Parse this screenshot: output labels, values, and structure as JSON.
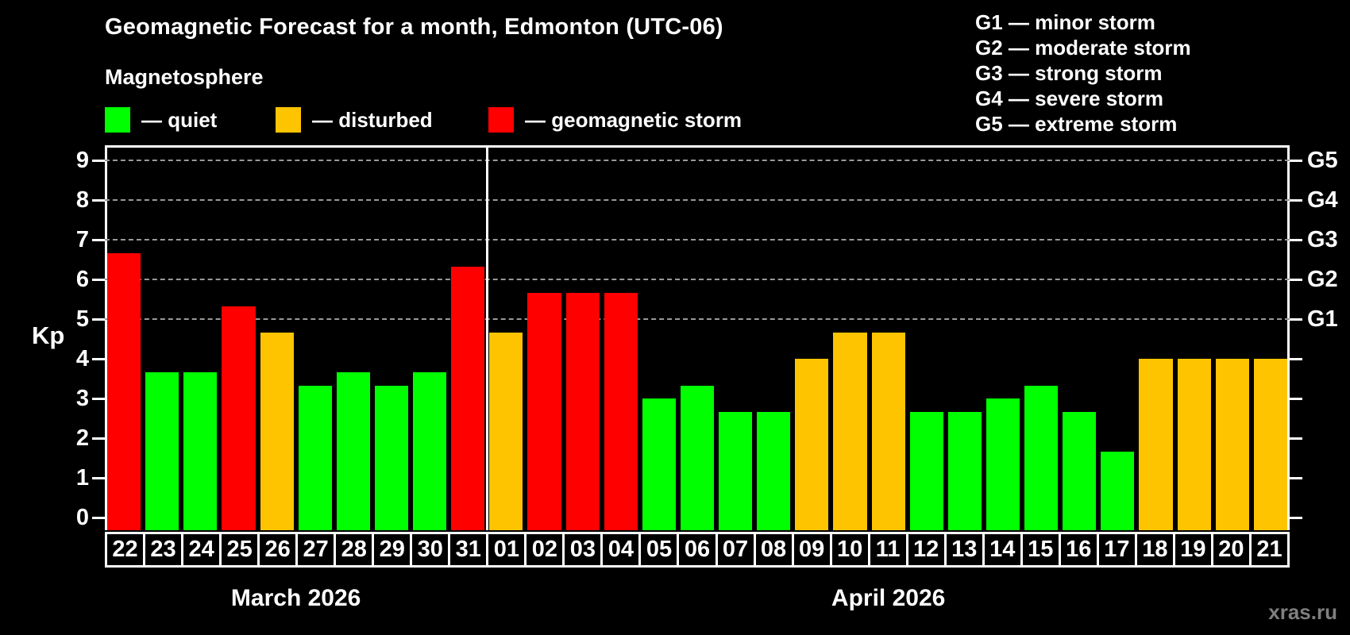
{
  "title": "Geomagnetic Forecast for a month, Edmonton (UTC-06)",
  "subtitle": "Magnetosphere",
  "legend": {
    "items": [
      {
        "key": "quiet",
        "label": "— quiet",
        "color": "#00ff00"
      },
      {
        "key": "disturbed",
        "label": "— disturbed",
        "color": "#ffc400"
      },
      {
        "key": "storm",
        "label": "— geomagnetic storm",
        "color": "#ff0000"
      }
    ]
  },
  "storm_scale_legend": [
    "G1 — minor storm",
    "G2 — moderate storm",
    "G3 — strong storm",
    "G4 — severe storm",
    "G5 — extreme storm"
  ],
  "watermark": "xras.ru",
  "chart_data": {
    "type": "bar",
    "ylabel": "Kp",
    "ylim": [
      0,
      9
    ],
    "yticks": [
      0,
      1,
      2,
      3,
      4,
      5,
      6,
      7,
      8,
      9
    ],
    "gridlines_at_kp": [
      5,
      6,
      7,
      8,
      9
    ],
    "grid_style": "dashed",
    "right_axis_labels": [
      {
        "label": "G1",
        "kp": 5
      },
      {
        "label": "G2",
        "kp": 6
      },
      {
        "label": "G3",
        "kp": 7
      },
      {
        "label": "G4",
        "kp": 8
      },
      {
        "label": "G5",
        "kp": 9
      }
    ],
    "colors": {
      "quiet": "#00ff00",
      "disturbed": "#ffc400",
      "storm": "#ff0000"
    },
    "months": [
      {
        "label": "March 2026",
        "days": 10
      },
      {
        "label": "April 2026",
        "days": 21
      }
    ],
    "bars": [
      {
        "day": "22",
        "month": "March 2026",
        "kp": 6.67,
        "level": "storm"
      },
      {
        "day": "23",
        "month": "March 2026",
        "kp": 3.67,
        "level": "quiet"
      },
      {
        "day": "24",
        "month": "March 2026",
        "kp": 3.67,
        "level": "quiet"
      },
      {
        "day": "25",
        "month": "March 2026",
        "kp": 5.33,
        "level": "storm"
      },
      {
        "day": "26",
        "month": "March 2026",
        "kp": 4.67,
        "level": "disturbed"
      },
      {
        "day": "27",
        "month": "March 2026",
        "kp": 3.33,
        "level": "quiet"
      },
      {
        "day": "28",
        "month": "March 2026",
        "kp": 3.67,
        "level": "quiet"
      },
      {
        "day": "29",
        "month": "March 2026",
        "kp": 3.33,
        "level": "quiet"
      },
      {
        "day": "30",
        "month": "March 2026",
        "kp": 3.67,
        "level": "quiet"
      },
      {
        "day": "31",
        "month": "March 2026",
        "kp": 6.33,
        "level": "storm"
      },
      {
        "day": "01",
        "month": "April 2026",
        "kp": 4.67,
        "level": "disturbed"
      },
      {
        "day": "02",
        "month": "April 2026",
        "kp": 5.67,
        "level": "storm"
      },
      {
        "day": "03",
        "month": "April 2026",
        "kp": 5.67,
        "level": "storm"
      },
      {
        "day": "04",
        "month": "April 2026",
        "kp": 5.67,
        "level": "storm"
      },
      {
        "day": "05",
        "month": "April 2026",
        "kp": 3.0,
        "level": "quiet"
      },
      {
        "day": "06",
        "month": "April 2026",
        "kp": 3.33,
        "level": "quiet"
      },
      {
        "day": "07",
        "month": "April 2026",
        "kp": 2.67,
        "level": "quiet"
      },
      {
        "day": "08",
        "month": "April 2026",
        "kp": 2.67,
        "level": "quiet"
      },
      {
        "day": "09",
        "month": "April 2026",
        "kp": 4.0,
        "level": "disturbed"
      },
      {
        "day": "10",
        "month": "April 2026",
        "kp": 4.67,
        "level": "disturbed"
      },
      {
        "day": "11",
        "month": "April 2026",
        "kp": 4.67,
        "level": "disturbed"
      },
      {
        "day": "12",
        "month": "April 2026",
        "kp": 2.67,
        "level": "quiet"
      },
      {
        "day": "13",
        "month": "April 2026",
        "kp": 2.67,
        "level": "quiet"
      },
      {
        "day": "14",
        "month": "April 2026",
        "kp": 3.0,
        "level": "quiet"
      },
      {
        "day": "15",
        "month": "April 2026",
        "kp": 3.33,
        "level": "quiet"
      },
      {
        "day": "16",
        "month": "April 2026",
        "kp": 2.67,
        "level": "quiet"
      },
      {
        "day": "17",
        "month": "April 2026",
        "kp": 1.67,
        "level": "quiet"
      },
      {
        "day": "18",
        "month": "April 2026",
        "kp": 4.0,
        "level": "disturbed"
      },
      {
        "day": "19",
        "month": "April 2026",
        "kp": 4.0,
        "level": "disturbed"
      },
      {
        "day": "20",
        "month": "April 2026",
        "kp": 4.0,
        "level": "disturbed"
      },
      {
        "day": "21",
        "month": "April 2026",
        "kp": 4.0,
        "level": "disturbed"
      }
    ]
  }
}
